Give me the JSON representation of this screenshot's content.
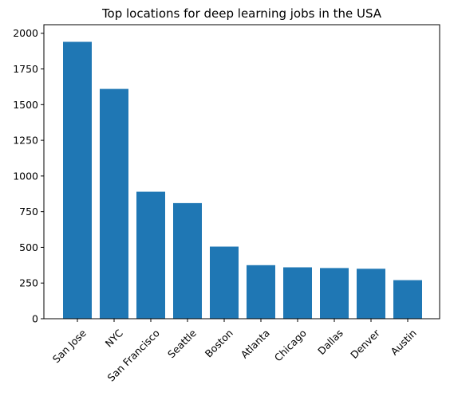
{
  "chart_data": {
    "type": "bar",
    "title": "Top locations for deep learning jobs in the USA",
    "xlabel": "",
    "ylabel": "",
    "categories": [
      "San Jose",
      "NYC",
      "San Francisco",
      "Seattle",
      "Boston",
      "Atlanta",
      "Chicago",
      "Dallas",
      "Denver",
      "Austin"
    ],
    "values": [
      1940,
      1610,
      890,
      810,
      505,
      375,
      360,
      355,
      350,
      270
    ],
    "ylim": [
      0,
      2060
    ],
    "yticks": [
      0,
      250,
      500,
      750,
      1000,
      1250,
      1500,
      1750,
      2000
    ],
    "bar_color": "#1f77b4",
    "grid": false,
    "legend": "none",
    "xtick_rotation_deg": 45
  }
}
